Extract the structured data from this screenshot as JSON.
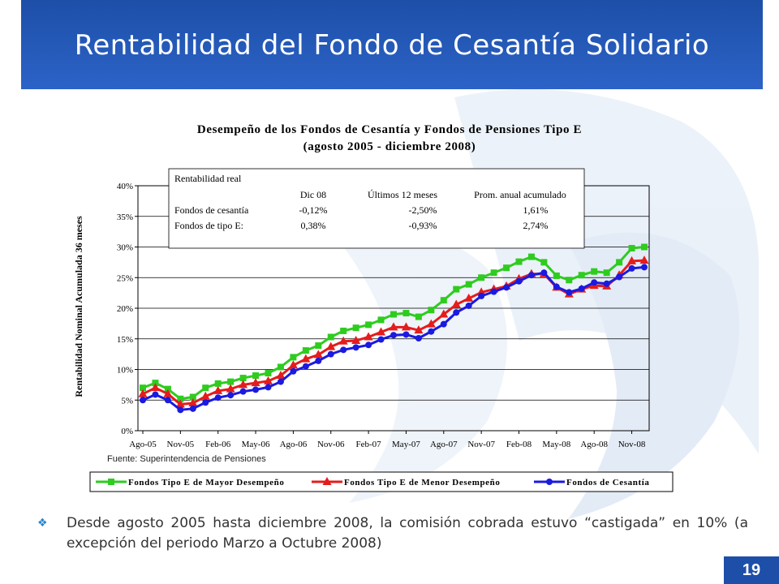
{
  "header": {
    "title": "Rentabilidad del Fondo de Cesantía Solidario"
  },
  "chart_data": {
    "type": "line",
    "title_line1": "Desempeño de los Fondos de Cesantía y Fondos de Pensiones Tipo E",
    "title_line2": "(agosto 2005 - diciembre 2008)",
    "ylabel": "Rentabilidad Nominal Acumulada 36 meses",
    "ylim": [
      0,
      40
    ],
    "yticks": [
      "0%",
      "5%",
      "10%",
      "15%",
      "20%",
      "25%",
      "30%",
      "35%",
      "40%"
    ],
    "xtick_labels": [
      "Ago-05",
      "Nov-05",
      "Feb-06",
      "May-06",
      "Ago-06",
      "Nov-06",
      "Feb-07",
      "May-07",
      "Ago-07",
      "Nov-07",
      "Feb-08",
      "May-08",
      "Ago-08",
      "Nov-08"
    ],
    "x": [
      "Ago-05",
      "Sep-05",
      "Oct-05",
      "Nov-05",
      "Dic-05",
      "Ene-06",
      "Feb-06",
      "Mar-06",
      "Abr-06",
      "May-06",
      "Jun-06",
      "Jul-06",
      "Ago-06",
      "Sep-06",
      "Oct-06",
      "Nov-06",
      "Dic-06",
      "Ene-07",
      "Feb-07",
      "Mar-07",
      "Abr-07",
      "May-07",
      "Jun-07",
      "Jul-07",
      "Ago-07",
      "Sep-07",
      "Oct-07",
      "Nov-07",
      "Dic-07",
      "Ene-08",
      "Feb-08",
      "Mar-08",
      "Abr-08",
      "May-08",
      "Jun-08",
      "Jul-08",
      "Ago-08",
      "Sep-08",
      "Oct-08",
      "Nov-08",
      "Dic-08"
    ],
    "series": [
      {
        "name": "Fondos Tipo E de Mayor Desempeño",
        "color": "#2ecc1f",
        "marker": "square",
        "values": [
          7.0,
          7.8,
          6.8,
          5.2,
          5.5,
          7.0,
          7.7,
          8.0,
          8.6,
          9.0,
          9.4,
          10.4,
          12.0,
          13.1,
          13.9,
          15.3,
          16.3,
          16.8,
          17.3,
          18.1,
          19.0,
          19.2,
          18.6,
          19.7,
          21.3,
          23.1,
          23.9,
          25.0,
          25.8,
          26.6,
          27.6,
          28.4,
          27.5,
          25.3,
          24.6,
          25.4,
          26.0,
          25.8,
          27.5,
          29.8,
          30.0
        ]
      },
      {
        "name": "Fondos Tipo E de Menor Desempeño",
        "color": "#e51c1c",
        "marker": "triangle",
        "values": [
          6.0,
          7.0,
          6.0,
          4.3,
          4.5,
          5.6,
          6.5,
          6.8,
          7.5,
          7.8,
          8.1,
          9.0,
          10.7,
          11.7,
          12.4,
          13.7,
          14.6,
          14.7,
          15.3,
          16.1,
          16.9,
          16.9,
          16.4,
          17.4,
          19.0,
          20.6,
          21.6,
          22.6,
          23.1,
          23.6,
          24.8,
          25.6,
          25.6,
          23.4,
          22.3,
          23.1,
          23.7,
          23.6,
          25.4,
          27.7,
          27.8
        ]
      },
      {
        "name": "Fondos de Cesantía",
        "color": "#1a1ae0",
        "marker": "circle",
        "values": [
          5.0,
          5.9,
          5.0,
          3.4,
          3.6,
          4.6,
          5.4,
          5.8,
          6.4,
          6.7,
          7.1,
          8.0,
          9.7,
          10.5,
          11.4,
          12.5,
          13.2,
          13.6,
          14.0,
          14.9,
          15.6,
          15.7,
          15.1,
          16.2,
          17.4,
          19.3,
          20.4,
          22.0,
          22.7,
          23.4,
          24.4,
          25.4,
          25.8,
          23.5,
          22.6,
          23.2,
          24.2,
          24.0,
          25.1,
          26.5,
          26.7
        ]
      }
    ],
    "info_box": {
      "title": "Rentabilidad real",
      "col_headers": [
        "Dic 08",
        "Últimos 12 meses",
        "Prom. anual acumulado"
      ],
      "rows": [
        {
          "label": "Fondos de cesantía",
          "values": [
            "-0,12%",
            "-2,50%",
            "1,61%"
          ]
        },
        {
          "label": "Fondos de tipo E:",
          "values": [
            "0,38%",
            "-0,93%",
            "2,74%"
          ]
        }
      ]
    },
    "grid": true,
    "legend_position": "bottom"
  },
  "source_note": "Fuente: Superintendencia de Pensiones",
  "bullet": {
    "text": "Desde agosto 2005 hasta diciembre  2008, la comisión cobrada estuvo “castigada” en 10% (a excepción del periodo Marzo a Octubre 2008)"
  },
  "page_number": "19",
  "colors": {
    "header_bg": "#1d4fa8",
    "bullet_icon": "#2a86c8",
    "watermark": "#dde8f5"
  }
}
